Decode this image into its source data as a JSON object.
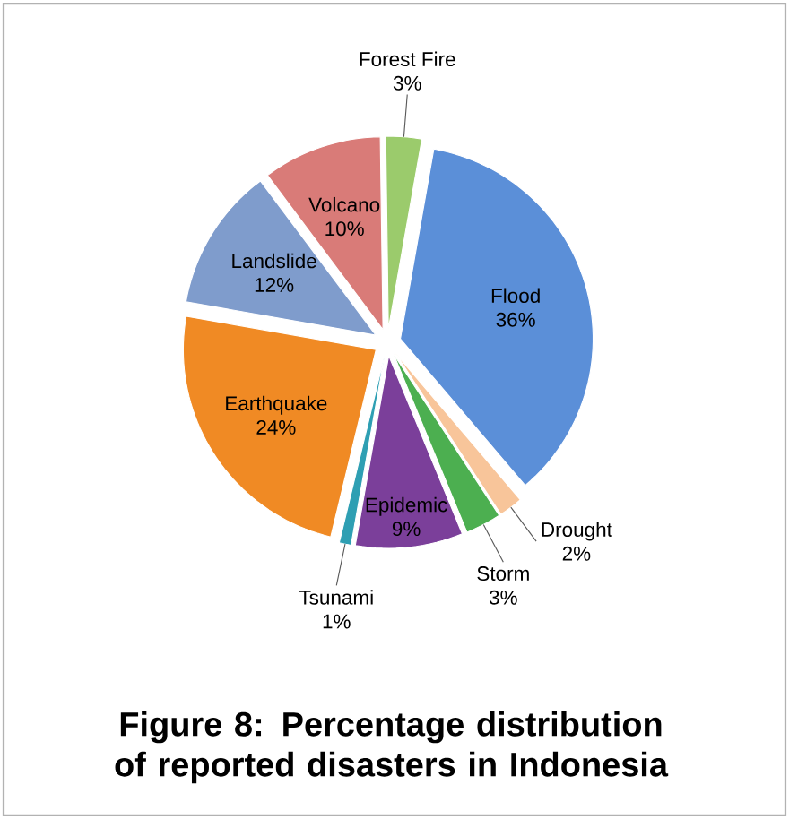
{
  "chart_data": {
    "type": "pie",
    "title": "Figure 8: Percentage distribution of reported disasters in Indonesia",
    "categories": [
      "Flood",
      "Drought",
      "Storm",
      "Epidemic",
      "Tsunami",
      "Earthquake",
      "Landslide",
      "Volcano",
      "Forest Fire"
    ],
    "values": [
      36,
      2,
      3,
      9,
      1,
      24,
      12,
      10,
      3
    ],
    "value_labels": [
      "36%",
      "2%",
      "3%",
      "9%",
      "1%",
      "24%",
      "12%",
      "10%",
      "3%"
    ],
    "colors": [
      "#5b8fd8",
      "#f8c59a",
      "#4caf50",
      "#7b3f9a",
      "#2e9fb3",
      "#f08a24",
      "#7f9ccc",
      "#d97b78",
      "#9bcb6c"
    ]
  }
}
